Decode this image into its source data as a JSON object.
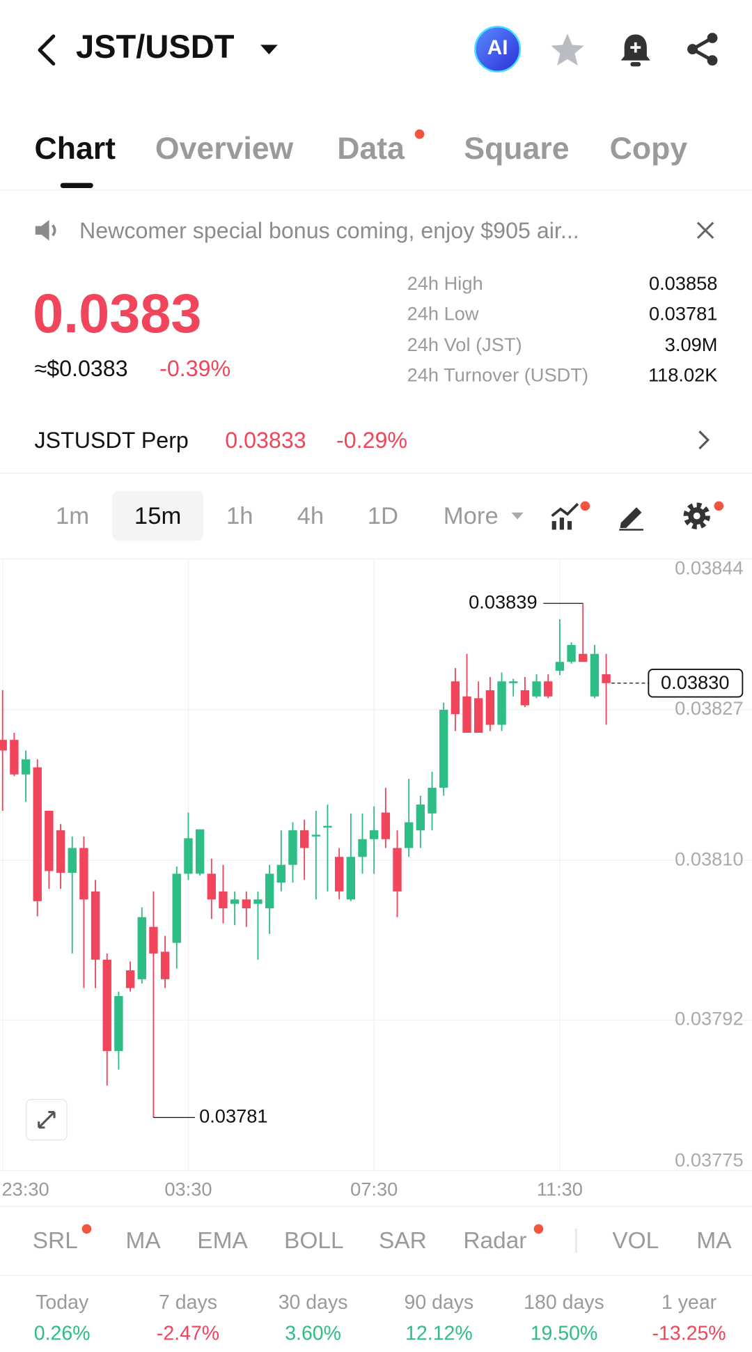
{
  "header": {
    "pair": "JST/USDT",
    "ai": "AI"
  },
  "tabs": [
    "Chart",
    "Overview",
    "Data",
    "Square",
    "Copy"
  ],
  "banner": "Newcomer special bonus coming, enjoy $905 air...",
  "price": {
    "last": "0.0383",
    "usd": "≈$0.0383",
    "change": "-0.39%"
  },
  "stats": [
    {
      "label": "24h High",
      "value": "0.03858"
    },
    {
      "label": "24h Low",
      "value": "0.03781"
    },
    {
      "label": "24h Vol (JST)",
      "value": "3.09M"
    },
    {
      "label": "24h Turnover (USDT)",
      "value": "118.02K"
    }
  ],
  "perp": {
    "name": "JSTUSDT Perp",
    "price": "0.03833",
    "change": "-0.29%"
  },
  "intervals": [
    "1m",
    "15m",
    "1h",
    "4h",
    "1D",
    "More"
  ],
  "selected_interval": 1,
  "chart_data": {
    "type": "candlestick",
    "up_color": "#2ebd85",
    "down_color": "#f0455a",
    "open": [
      0.038236,
      0.038236,
      0.038197,
      0.038205,
      0.038156,
      0.038134,
      0.038086,
      0.038114,
      0.038065,
      0.037988,
      0.037885,
      0.037976,
      0.037966,
      0.038025,
      0.037997,
      0.038007,
      0.038085,
      0.038085,
      0.038085,
      0.038065,
      0.038051,
      0.038056,
      0.038051,
      0.038046,
      0.038075,
      0.038095,
      0.038134,
      0.038127,
      0.038137,
      0.038104,
      0.038056,
      0.038104,
      0.038124,
      0.038154,
      0.038114,
      0.038114,
      0.038134,
      0.038153,
      0.038182,
      0.038302,
      0.038285,
      0.038283,
      0.038292,
      0.038253,
      0.0383,
      0.038292,
      0.038285,
      0.038302,
      0.038314,
      0.038324,
      0.038333,
      0.038285,
      0.03831
    ],
    "high": [
      0.038292,
      0.038244,
      0.038224,
      0.038214,
      0.038156,
      0.038141,
      0.038127,
      0.038127,
      0.038078,
      0.037995,
      0.037952,
      0.037986,
      0.038047,
      0.038065,
      0.038015,
      0.038093,
      0.038154,
      0.038135,
      0.038102,
      0.038095,
      0.038065,
      0.038065,
      0.038065,
      0.038095,
      0.038134,
      0.038143,
      0.038146,
      0.038156,
      0.038163,
      0.038114,
      0.038153,
      0.038153,
      0.038161,
      0.038182,
      0.038134,
      0.038192,
      0.038173,
      0.0382,
      0.038278,
      0.038317,
      0.038333,
      0.038302,
      0.038307,
      0.038312,
      0.038305,
      0.038307,
      0.03831,
      0.03831,
      0.038372,
      0.038346,
      0.03839,
      0.038343,
      0.038333
    ],
    "low": [
      0.038156,
      0.038195,
      0.038166,
      0.038037,
      0.038068,
      0.038068,
      0.037995,
      0.037956,
      0.037956,
      0.037846,
      0.037864,
      0.037952,
      0.037961,
      0.03781,
      0.037956,
      0.037978,
      0.038078,
      0.038083,
      0.038034,
      0.038029,
      0.038027,
      0.038025,
      0.037988,
      0.038017,
      0.038065,
      0.038075,
      0.038078,
      0.038056,
      0.038065,
      0.038056,
      0.038054,
      0.038085,
      0.038085,
      0.038114,
      0.038036,
      0.038104,
      0.038114,
      0.038134,
      0.038173,
      0.038246,
      0.038244,
      0.038244,
      0.038246,
      0.038246,
      0.038285,
      0.038273,
      0.038283,
      0.038283,
      0.038309,
      0.038322,
      0.038324,
      0.038283,
      0.038253
    ],
    "close": [
      0.038224,
      0.038197,
      0.038214,
      0.038054,
      0.038088,
      0.038086,
      0.038114,
      0.038056,
      0.037988,
      0.037885,
      0.037947,
      0.037956,
      0.038036,
      0.037995,
      0.037966,
      0.038085,
      0.038125,
      0.038135,
      0.038056,
      0.038046,
      0.038056,
      0.038046,
      0.038056,
      0.038085,
      0.038095,
      0.038134,
      0.038114,
      0.038129,
      0.038139,
      0.038065,
      0.038104,
      0.038124,
      0.038134,
      0.038124,
      0.038065,
      0.038143,
      0.038163,
      0.038182,
      0.03827,
      0.038265,
      0.038244,
      0.038244,
      0.038253,
      0.038302,
      0.038302,
      0.038275,
      0.038302,
      0.038285,
      0.038324,
      0.038343,
      0.038324,
      0.038333,
      0.0383
    ],
    "ylim": [
      0.03775,
      0.03844
    ],
    "yticks": [
      0.03844,
      0.03827,
      0.0381,
      0.03792,
      0.03775
    ],
    "ytick_labels": [
      "0.03844",
      "0.03827",
      "0.03810",
      "0.03792",
      "0.03775"
    ],
    "xticks": [
      {
        "value": 0,
        "label": "23:30"
      },
      {
        "value": 16,
        "label": "03:30"
      },
      {
        "value": 32,
        "label": "07:30"
      },
      {
        "value": 48,
        "label": "11:30"
      }
    ],
    "high_label": 0.03839,
    "low_label": 0.03781,
    "last_price": {
      "value": 0.0383,
      "label": "0.03830"
    },
    "grid": true
  },
  "indicators": [
    "SRL",
    "MA",
    "EMA",
    "BOLL",
    "SAR",
    "Radar",
    "VOL",
    "MA"
  ],
  "returns": [
    {
      "period": "Today",
      "value": "0.26%"
    },
    {
      "period": "7 days",
      "value": "-2.47%"
    },
    {
      "period": "30 days",
      "value": "3.60%"
    },
    {
      "period": "90 days",
      "value": "12.12%"
    },
    {
      "period": "180 days",
      "value": "19.50%"
    },
    {
      "period": "1 year",
      "value": "-13.25%"
    }
  ]
}
